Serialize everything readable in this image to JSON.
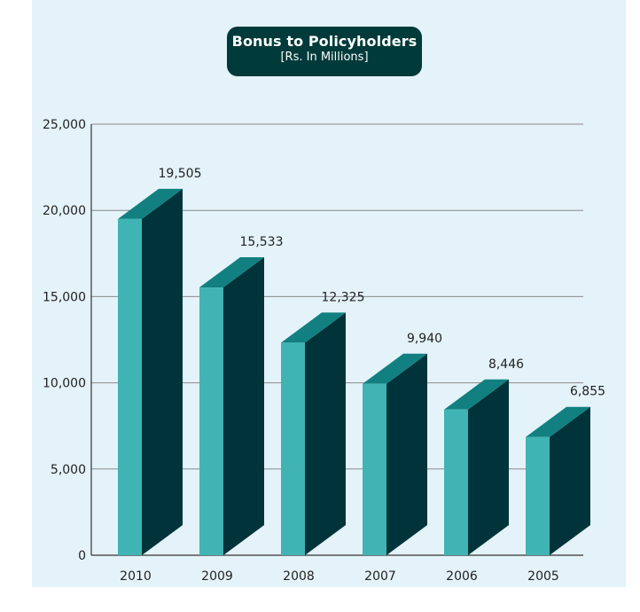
{
  "chart_data": {
    "type": "bar",
    "title": "Bonus to Policyholders",
    "subtitle": "[Rs. In Millions]",
    "categories": [
      "2010",
      "2009",
      "2008",
      "2007",
      "2006",
      "2005"
    ],
    "values": [
      19505,
      15533,
      12325,
      9940,
      8446,
      6855
    ],
    "value_labels": [
      "19,505",
      "15,533",
      "12,325",
      "9,940",
      "8,446",
      "6,855"
    ],
    "ylim": [
      0,
      25000
    ],
    "yticks": [
      0,
      5000,
      10000,
      15000,
      20000,
      25000
    ],
    "ytick_labels": [
      "0",
      "5,000",
      "10,000",
      "15,000",
      "20,000",
      "25,000"
    ],
    "grid": true,
    "style": "3d",
    "colors": {
      "front": "#40b4b4",
      "side": "#00343a",
      "top": "#128080",
      "background": "#e4f2f9",
      "grid": "#8a8a8a",
      "title_box": "#003a3a"
    }
  }
}
